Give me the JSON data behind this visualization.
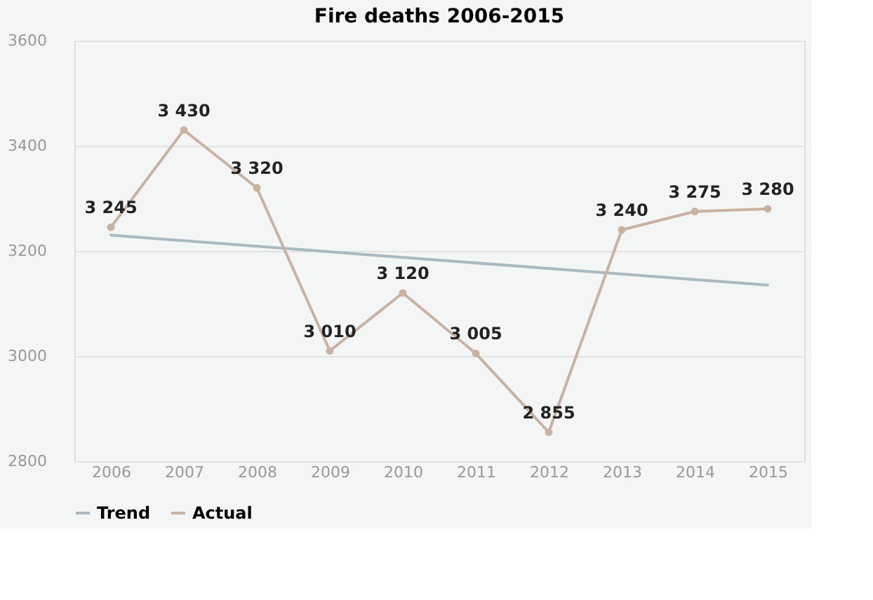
{
  "chart_data": {
    "type": "line",
    "title": "Fire deaths 2006-2015",
    "categories": [
      "2006",
      "2007",
      "2008",
      "2009",
      "2010",
      "2011",
      "2012",
      "2013",
      "2014",
      "2015"
    ],
    "series": [
      {
        "name": "Trend",
        "color": "#a9b9c2",
        "values": [
          3230,
          null,
          null,
          null,
          null,
          null,
          null,
          null,
          null,
          3135
        ]
      },
      {
        "name": "Actual",
        "color": "#c9b2a2",
        "marker": "circle",
        "values": [
          3245,
          3430,
          3320,
          3010,
          3120,
          3005,
          2855,
          3240,
          3275,
          3280
        ],
        "value_labels": [
          "3 245",
          "3 430",
          "3 320",
          "3 010",
          "3 120",
          "3 005",
          "2 855",
          "3 240",
          "3 275",
          "3 280"
        ]
      }
    ],
    "ylim": [
      2800,
      3600
    ],
    "yticks": [
      2800,
      3000,
      3200,
      3400,
      3600
    ],
    "grid": "y",
    "legend": "bottom"
  }
}
